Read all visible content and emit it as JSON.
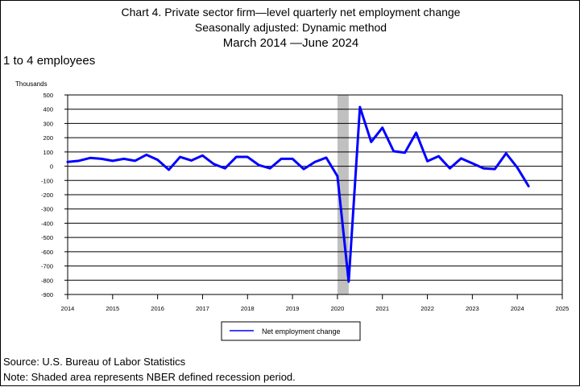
{
  "header": {
    "title_line1": "Chart 4. Private sector firm—level quarterly net employment change",
    "title_line2": "Seasonally adjusted: Dynamic method",
    "title_line3": "March 2014 —June 2024",
    "subtitle": "1 to 4 employees"
  },
  "footer": {
    "source": "Source: U.S. Bureau of Labor Statistics",
    "note": "Note: Shaded area represents NBER defined recession period."
  },
  "colors": {
    "series": "#0000ff",
    "recession": "#c0c0c0",
    "grid": "#000000"
  },
  "chart_data": {
    "type": "line",
    "ylabel": "Thousands",
    "xlabel": "",
    "ylim": [
      -900,
      500
    ],
    "yticks": [
      -900,
      -800,
      -700,
      -600,
      -500,
      -400,
      -300,
      -200,
      -100,
      0,
      100,
      200,
      300,
      400,
      500
    ],
    "xlim": [
      2014,
      2025
    ],
    "xticks": [
      2014,
      2015,
      2016,
      2017,
      2018,
      2019,
      2020,
      2021,
      2022,
      2023,
      2024,
      2025
    ],
    "grid": "horizontal",
    "legend": {
      "position": "bottom-center",
      "entries": [
        "Net employment change"
      ]
    },
    "recession": {
      "start": 2020.0,
      "end": 2020.25
    },
    "series": [
      {
        "name": "Net employment change",
        "x": [
          2014.0,
          2014.25,
          2014.5,
          2014.75,
          2015.0,
          2015.25,
          2015.5,
          2015.75,
          2016.0,
          2016.25,
          2016.5,
          2016.75,
          2017.0,
          2017.25,
          2017.5,
          2017.75,
          2018.0,
          2018.25,
          2018.5,
          2018.75,
          2019.0,
          2019.25,
          2019.5,
          2019.75,
          2020.0,
          2020.25,
          2020.5,
          2020.75,
          2021.0,
          2021.25,
          2021.5,
          2021.75,
          2022.0,
          2022.25,
          2022.5,
          2022.75,
          2023.0,
          2023.25,
          2023.5,
          2023.75,
          2024.0,
          2024.25
        ],
        "values": [
          30,
          38,
          58,
          52,
          38,
          52,
          38,
          80,
          45,
          -25,
          65,
          40,
          75,
          15,
          -15,
          65,
          65,
          8,
          -15,
          52,
          52,
          -20,
          30,
          60,
          -70,
          -810,
          415,
          170,
          270,
          105,
          95,
          235,
          35,
          70,
          -15,
          55,
          20,
          -15,
          -20,
          90,
          -10,
          -140
        ]
      }
    ]
  }
}
